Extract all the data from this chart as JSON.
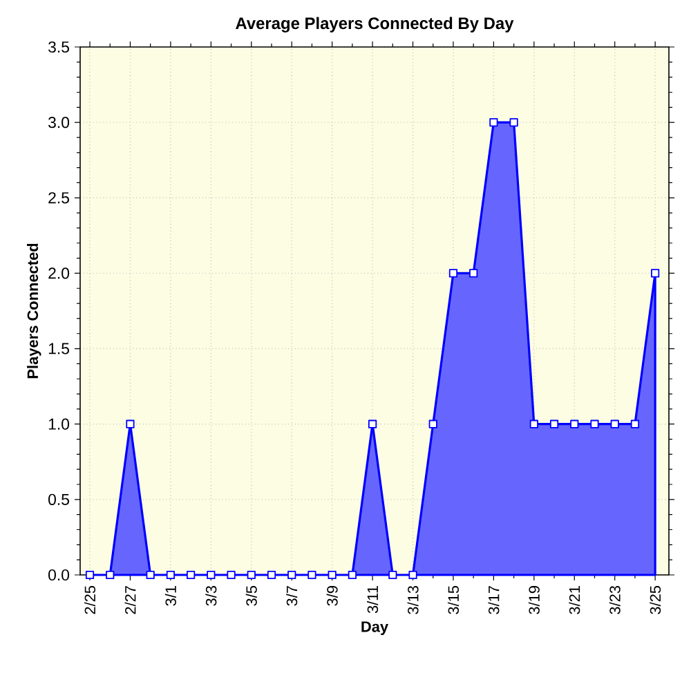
{
  "chart_data": {
    "type": "area",
    "title": "Average Players Connected By Day",
    "xlabel": "Day",
    "ylabel": "Players Connected",
    "categories": [
      "2/25",
      null,
      "2/27",
      null,
      "3/1",
      null,
      "3/3",
      null,
      "3/5",
      null,
      "3/7",
      null,
      "3/9",
      null,
      "3/11",
      null,
      "3/13",
      null,
      "3/15",
      null,
      "3/17",
      null,
      "3/19",
      null,
      "3/21",
      null,
      "3/23",
      null,
      "3/25"
    ],
    "values": [
      0,
      0,
      1,
      0,
      0,
      0,
      0,
      0,
      0,
      0,
      0,
      0,
      0,
      0,
      1,
      0,
      0,
      1,
      2,
      2,
      3,
      3,
      1,
      1,
      1,
      1,
      1,
      1,
      2
    ],
    "color": "#0000ff",
    "ylim": [
      0,
      3.5
    ],
    "yticks": [
      {
        "value": 0,
        "label": "0.0"
      },
      {
        "value": 0.5,
        "label": "0.5"
      },
      {
        "value": 1,
        "label": "1.0"
      },
      {
        "value": 1.5,
        "label": "1.5"
      },
      {
        "value": 2,
        "label": "2.0"
      },
      {
        "value": 2.5,
        "label": "2.5"
      },
      {
        "value": 3,
        "label": "3.0"
      },
      {
        "value": 3.5,
        "label": "3.5"
      }
    ],
    "grid": true,
    "marker": "square",
    "line_style": "solid"
  }
}
